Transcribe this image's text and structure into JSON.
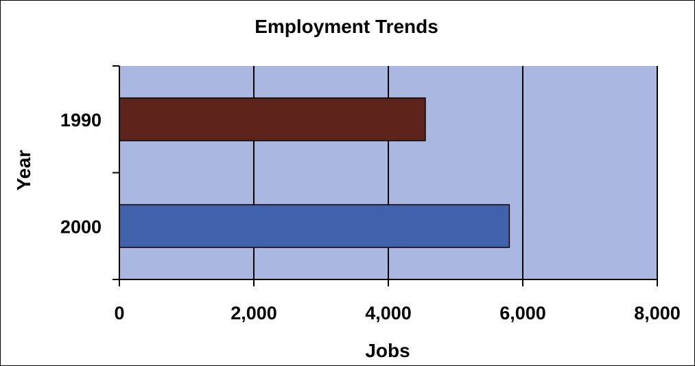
{
  "chart_data": {
    "type": "bar",
    "orientation": "horizontal",
    "title": "Employment Trends",
    "xlabel": "Jobs",
    "ylabel": "Year",
    "categories": [
      "1990",
      "2000"
    ],
    "values": [
      4550,
      5800
    ],
    "bar_colors": [
      "#5e241c",
      "#4163ad"
    ],
    "xlim": [
      0,
      8000
    ],
    "x_ticks": [
      "0",
      "2,000",
      "4,000",
      "6,000",
      "8,000"
    ],
    "x_tick_values": [
      0,
      2000,
      4000,
      6000,
      8000
    ],
    "grid": true,
    "plot_background": "#aab7e0",
    "legend": "none"
  }
}
